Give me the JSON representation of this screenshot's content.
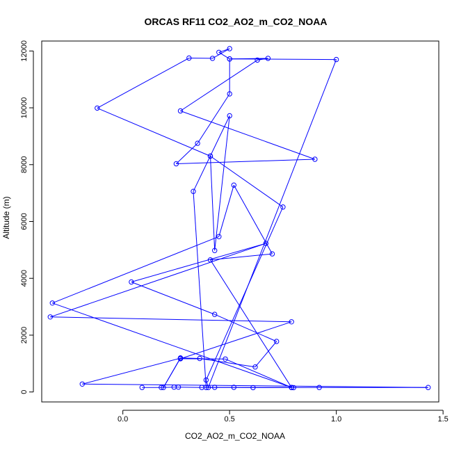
{
  "chart_data": {
    "type": "line",
    "title": "ORCAS RF11 CO2_AO2_m_CO2_NOAA",
    "xlabel": "CO2_AO2_m_CO2_NOAA",
    "ylabel": "Altitude (m)",
    "xlim": [
      -0.38,
      1.48
    ],
    "ylim": [
      -350,
      12350
    ],
    "x_ticks": [
      0.0,
      0.5,
      1.0,
      1.5
    ],
    "x_tick_labels": [
      "0.0",
      "0.5",
      "1.0",
      "1.5"
    ],
    "y_ticks": [
      0,
      2000,
      4000,
      6000,
      8000,
      10000,
      12000
    ],
    "y_tick_labels": [
      "0",
      "2000",
      "4000",
      "6000",
      "8000",
      "10000",
      "12000"
    ],
    "grid": false,
    "legend": "none",
    "colors": {
      "series": "#0000ff",
      "axes": "#000000"
    },
    "series": [
      {
        "marker": "open-circle",
        "points": [
          [
            0.09,
            160
          ],
          [
            0.18,
            160
          ],
          [
            0.24,
            170
          ],
          [
            0.26,
            170
          ],
          [
            0.37,
            160
          ],
          [
            0.43,
            165
          ],
          [
            0.52,
            165
          ],
          [
            0.61,
            155
          ],
          [
            0.79,
            160
          ],
          [
            0.8,
            155
          ],
          [
            0.92,
            160
          ],
          [
            1.43,
            160
          ],
          [
            -0.19,
            280
          ],
          [
            0.27,
            1190
          ],
          [
            0.19,
            160
          ],
          [
            0.27,
            1200
          ],
          [
            0.36,
            1180
          ],
          [
            0.62,
            880
          ],
          [
            0.72,
            1780
          ],
          [
            0.43,
            2730
          ],
          [
            0.04,
            3870
          ],
          [
            0.67,
            5230
          ],
          [
            -0.34,
            2640
          ],
          [
            0.79,
            2470
          ],
          [
            0.27,
            1170
          ],
          [
            0.48,
            1160
          ],
          [
            0.79,
            160
          ],
          [
            -0.33,
            3130
          ],
          [
            0.45,
            5470
          ],
          [
            0.52,
            7280
          ],
          [
            0.7,
            4860
          ],
          [
            0.41,
            4650
          ],
          [
            0.79,
            160
          ],
          [
            0.39,
            160
          ],
          [
            0.33,
            7060
          ],
          [
            0.5,
            9720
          ],
          [
            0.43,
            4980
          ],
          [
            0.41,
            8300
          ],
          [
            -0.12,
            9990
          ],
          [
            0.31,
            11750
          ],
          [
            0.42,
            11740
          ],
          [
            0.5,
            12080
          ],
          [
            0.45,
            11950
          ],
          [
            0.5,
            11720
          ],
          [
            0.68,
            11740
          ],
          [
            0.63,
            11680
          ],
          [
            0.27,
            9890
          ],
          [
            0.9,
            8190
          ],
          [
            0.25,
            8030
          ],
          [
            0.35,
            8750
          ],
          [
            0.5,
            10490
          ],
          [
            0.5,
            11720
          ],
          [
            1.0,
            11700
          ],
          [
            0.4,
            160
          ],
          [
            0.39,
            420
          ],
          [
            0.75,
            6510
          ],
          [
            0.41,
            8300
          ]
        ]
      }
    ]
  }
}
